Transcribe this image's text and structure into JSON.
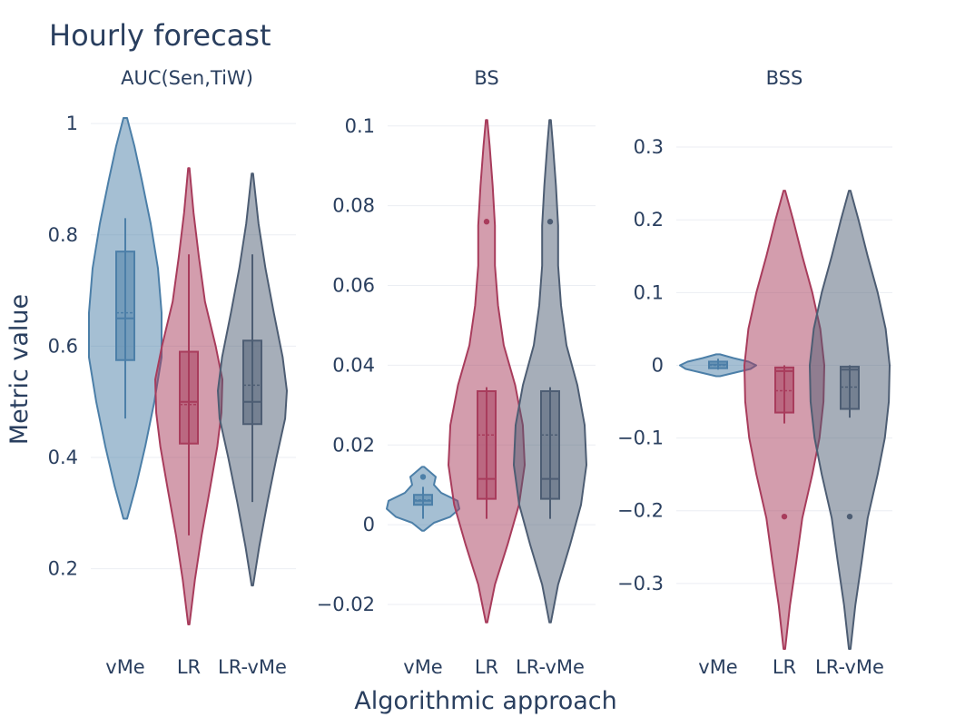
{
  "title": "Hourly forecast",
  "xlabel": "Algorithmic approach",
  "ylabel": "Metric value",
  "colors": {
    "vMe": "#4c7fa8",
    "LR": "#a83c5c",
    "LR-vMe": "#4d5d73"
  },
  "chart_data": [
    {
      "type": "violin",
      "title": "AUC(Sen,TiW)",
      "categories": [
        "vMe",
        "LR",
        "LR-vMe"
      ],
      "ylim": [
        0.1,
        1.01
      ],
      "yticks": [
        0.2,
        0.4,
        0.6,
        0.8,
        1
      ],
      "yticklabels": [
        "0.2",
        "0.4",
        "0.6",
        "0.8",
        "1"
      ],
      "series": [
        {
          "category": "vMe",
          "min": 0.47,
          "q1": 0.575,
          "median": 0.65,
          "mean": 0.66,
          "q3": 0.77,
          "max": 0.83,
          "kde_y": [
            0.29,
            0.35,
            0.42,
            0.5,
            0.58,
            0.66,
            0.74,
            0.82,
            0.9,
            0.96,
            1.01
          ],
          "kde_w": [
            0.05,
            0.3,
            0.55,
            0.8,
            1.0,
            1.0,
            0.9,
            0.7,
            0.45,
            0.25,
            0.05
          ]
        },
        {
          "category": "LR",
          "min": 0.26,
          "q1": 0.425,
          "median": 0.5,
          "mean": 0.495,
          "q3": 0.59,
          "max": 0.765,
          "kde_y": [
            0.1,
            0.18,
            0.26,
            0.34,
            0.42,
            0.48,
            0.54,
            0.6,
            0.68,
            0.76,
            0.84,
            0.92
          ],
          "kde_w": [
            0.02,
            0.18,
            0.38,
            0.62,
            0.85,
            0.97,
            1.0,
            0.8,
            0.48,
            0.3,
            0.14,
            0.02
          ]
        },
        {
          "category": "LR-vMe",
          "min": 0.32,
          "q1": 0.46,
          "median": 0.5,
          "mean": 0.53,
          "q3": 0.61,
          "max": 0.765,
          "kde_y": [
            0.17,
            0.24,
            0.32,
            0.4,
            0.47,
            0.52,
            0.58,
            0.66,
            0.74,
            0.82,
            0.91
          ],
          "kde_w": [
            0.02,
            0.2,
            0.44,
            0.7,
            0.95,
            1.0,
            0.88,
            0.62,
            0.38,
            0.18,
            0.02
          ]
        }
      ],
      "outliers": []
    },
    {
      "type": "violin",
      "title": "BS",
      "categories": [
        "vMe",
        "LR",
        "LR-vMe"
      ],
      "ylim": [
        -0.025,
        0.102
      ],
      "yticks": [
        -0.02,
        0,
        0.02,
        0.04,
        0.06,
        0.08,
        0.1
      ],
      "yticklabels": [
        "−0.02",
        "0",
        "0.02",
        "0.04",
        "0.06",
        "0.08",
        "0.1"
      ],
      "series": [
        {
          "category": "vMe",
          "min": 0.0015,
          "q1": 0.005,
          "median": 0.006,
          "mean": 0.0062,
          "q3": 0.0075,
          "max": 0.0095,
          "kde_y": [
            -0.0015,
            0.0005,
            0.002,
            0.004,
            0.006,
            0.008,
            0.01,
            0.012,
            0.0145
          ],
          "kde_w": [
            0.03,
            0.3,
            0.75,
            1.0,
            0.95,
            0.5,
            0.3,
            0.35,
            0.03
          ]
        },
        {
          "category": "LR",
          "min": 0.0015,
          "q1": 0.0065,
          "median": 0.0115,
          "mean": 0.0225,
          "q3": 0.0335,
          "max": 0.0345,
          "kde_y": [
            -0.0245,
            -0.015,
            -0.005,
            0.005,
            0.015,
            0.025,
            0.035,
            0.045,
            0.055,
            0.065,
            0.075,
            0.085,
            0.095,
            0.1015
          ],
          "kde_w": [
            0.02,
            0.22,
            0.55,
            0.85,
            1.0,
            0.95,
            0.75,
            0.45,
            0.3,
            0.22,
            0.22,
            0.16,
            0.08,
            0.02
          ]
        },
        {
          "category": "LR-vMe",
          "min": 0.0015,
          "q1": 0.0065,
          "median": 0.0115,
          "mean": 0.0225,
          "q3": 0.0335,
          "max": 0.0345,
          "kde_y": [
            -0.0245,
            -0.015,
            -0.005,
            0.005,
            0.015,
            0.025,
            0.035,
            0.045,
            0.055,
            0.065,
            0.075,
            0.085,
            0.095,
            0.1015
          ],
          "kde_w": [
            0.02,
            0.22,
            0.55,
            0.85,
            1.0,
            0.95,
            0.75,
            0.45,
            0.3,
            0.22,
            0.22,
            0.16,
            0.08,
            0.02
          ]
        }
      ],
      "outliers": [
        {
          "category": "vMe",
          "value": 0.012
        },
        {
          "category": "LR",
          "value": 0.076
        },
        {
          "category": "LR-vMe",
          "value": 0.076
        }
      ]
    },
    {
      "type": "violin",
      "title": "BSS",
      "categories": [
        "vMe",
        "LR",
        "LR-vMe"
      ],
      "ylim": [
        -0.39,
        0.34
      ],
      "yticks": [
        -0.3,
        -0.2,
        -0.1,
        0,
        0.1,
        0.2,
        0.3
      ],
      "yticklabels": [
        "−0.3",
        "−0.2",
        "−0.1",
        "0",
        "0.1",
        "0.2",
        "0.3"
      ],
      "series": [
        {
          "category": "vMe",
          "min": -0.006,
          "q1": -0.004,
          "median": 0.001,
          "mean": 0.0,
          "q3": 0.005,
          "max": 0.009,
          "kde_y": [
            -0.015,
            -0.01,
            -0.005,
            0,
            0.005,
            0.01,
            0.015
          ],
          "kde_w": [
            0.05,
            0.45,
            0.85,
            1.0,
            0.8,
            0.4,
            0.05
          ]
        },
        {
          "category": "LR",
          "min": -0.08,
          "q1": -0.065,
          "median": -0.008,
          "mean": -0.035,
          "q3": -0.003,
          "max": 0.0,
          "kde_y": [
            -0.39,
            -0.33,
            -0.27,
            -0.21,
            -0.15,
            -0.1,
            -0.05,
            0.0,
            0.05,
            0.1,
            0.15,
            0.2,
            0.24
          ],
          "kde_w": [
            0.02,
            0.14,
            0.3,
            0.45,
            0.7,
            0.88,
            0.98,
            1.0,
            0.9,
            0.7,
            0.45,
            0.22,
            0.02
          ]
        },
        {
          "category": "LR-vMe",
          "min": -0.072,
          "q1": -0.06,
          "median": -0.006,
          "mean": -0.03,
          "q3": -0.002,
          "max": 0.0,
          "kde_y": [
            -0.39,
            -0.33,
            -0.27,
            -0.21,
            -0.15,
            -0.1,
            -0.05,
            0.0,
            0.05,
            0.1,
            0.15,
            0.2,
            0.24
          ],
          "kde_w": [
            0.02,
            0.14,
            0.3,
            0.45,
            0.7,
            0.88,
            0.98,
            1.0,
            0.9,
            0.7,
            0.45,
            0.22,
            0.02
          ]
        }
      ],
      "outliers": [
        {
          "category": "LR",
          "value": -0.208
        },
        {
          "category": "LR-vMe",
          "value": -0.208
        }
      ]
    }
  ]
}
